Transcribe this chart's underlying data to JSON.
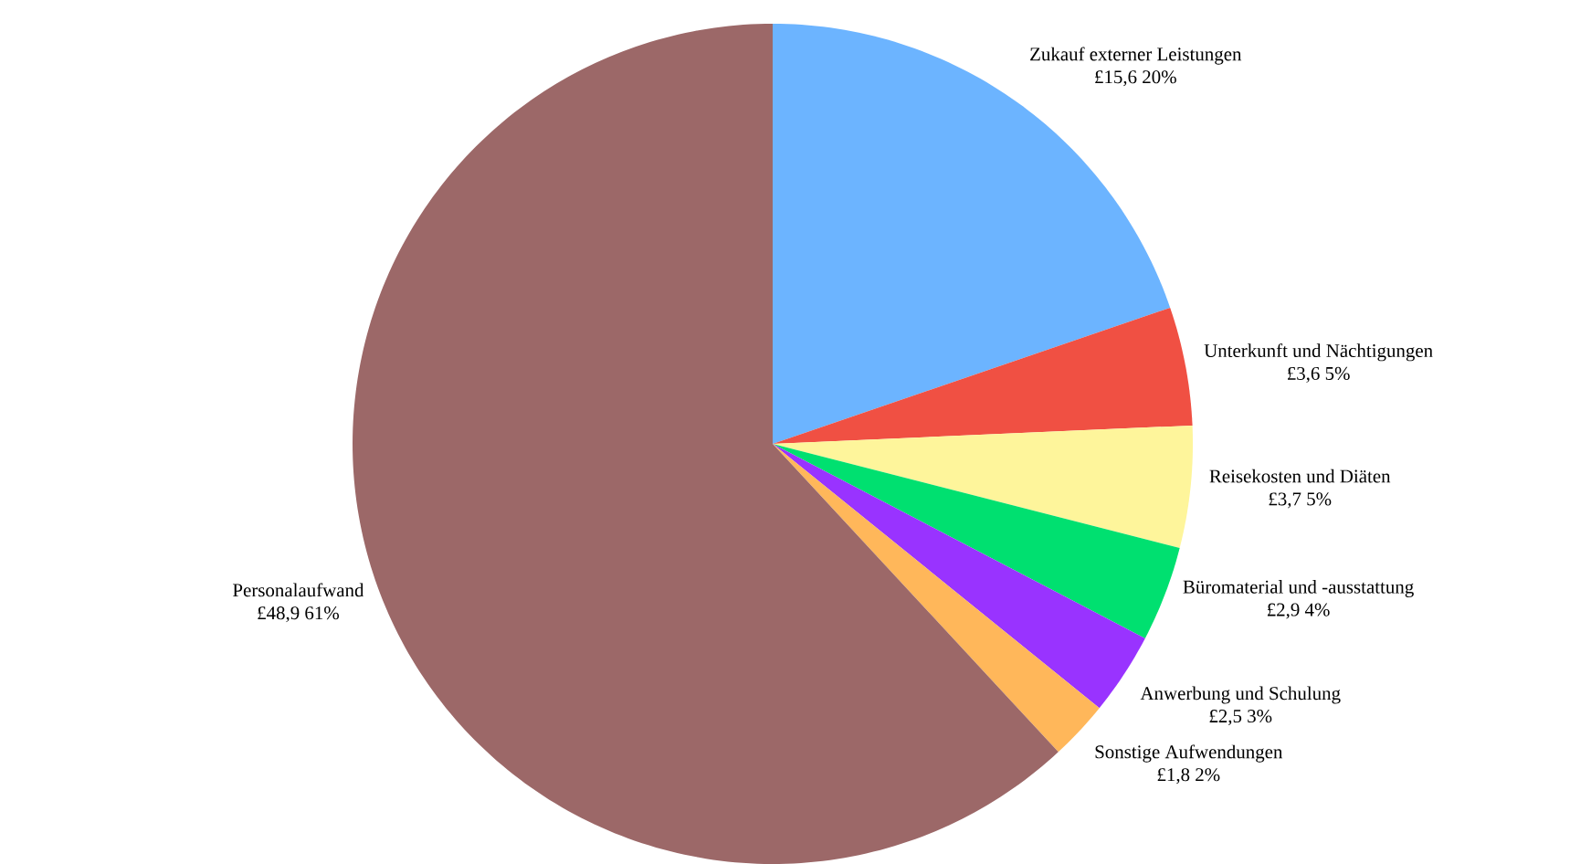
{
  "chart_data": {
    "type": "pie",
    "categories": [
      "Zukauf externer Leistungen",
      "Unterkunft und Nächtigungen",
      "Reisekosten und Diäten",
      "Büromaterial und -ausstattung",
      "Anwerbung und Schulung",
      "Sonstige Aufwendungen",
      "Personalaufwand"
    ],
    "values": [
      15.6,
      3.6,
      3.7,
      2.9,
      2.5,
      1.8,
      48.9
    ],
    "colors": [
      "#6cb4ff",
      "#f05043",
      "#fef59b",
      "#00e070",
      "#9933ff",
      "#ffb75a",
      "#9c6868"
    ],
    "value_labels": [
      "£15,6 20%",
      "£3,6 5%",
      "£3,7 5%",
      "£2,9 4%",
      "£2,5 3%",
      "£1,8 2%",
      "£48,9 61%"
    ]
  }
}
